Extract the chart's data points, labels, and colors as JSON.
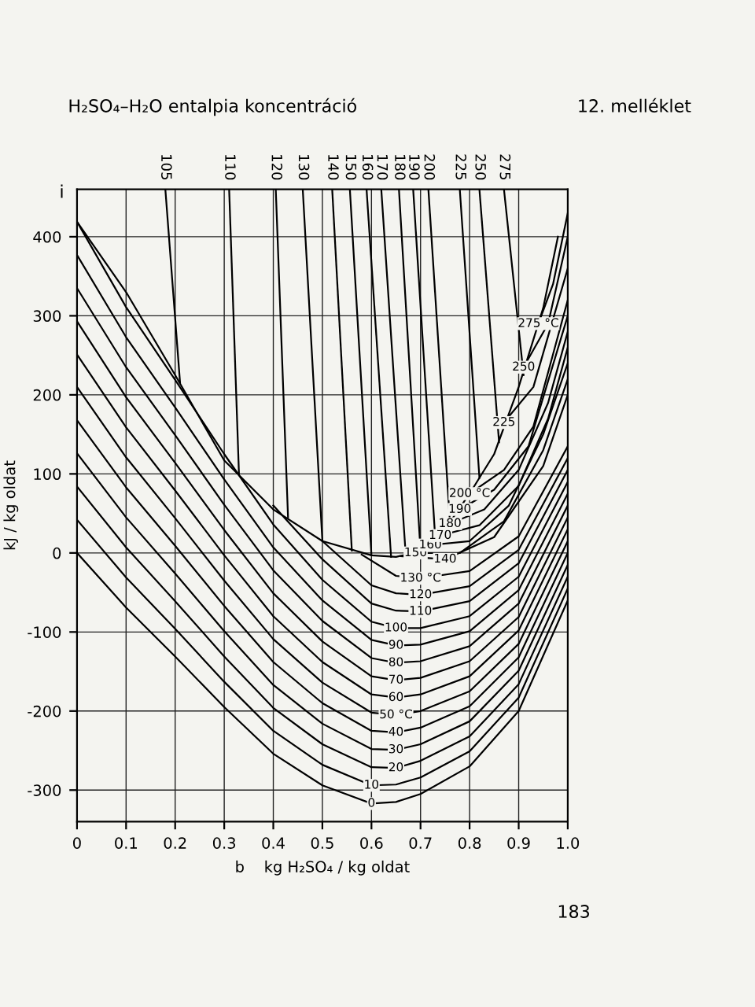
{
  "chart_data": {
    "type": "line",
    "title": "H₂SO₄–H₂O entalpia koncentráció",
    "xlabel": "b    kg H₂SO₄ / kg oldat",
    "ylabel": "kJ / kg oldat",
    "annotations": [
      "i",
      "12. melléklet",
      "183"
    ],
    "xlim": [
      0,
      1.0
    ],
    "ylim": [
      -340,
      460
    ],
    "xticks": [
      0,
      0.1,
      0.2,
      0.3,
      0.4,
      0.5,
      0.6,
      0.7,
      0.8,
      0.9,
      {
        "value": 1.0,
        "label": "1.0"
      }
    ],
    "yticks": [
      -300,
      -200,
      -100,
      0,
      100,
      200,
      300,
      400
    ],
    "grid": true,
    "legend": false,
    "marker": "none",
    "line_style": "solid",
    "series": [
      {
        "color": "#000000",
        "x": [
          0,
          0.1,
          0.2,
          0.3,
          0.4,
          0.5,
          0.6,
          0.65,
          0.7,
          0.75,
          0.8,
          0.85,
          0.9,
          0.95,
          0.98
        ],
        "values": [
          419,
          330,
          225,
          117,
          55,
          15,
          -3,
          -5,
          2,
          30,
          75,
          125,
          210,
          310,
          400
        ]
      },
      {
        "name": "0",
        "color": "#000000",
        "x": [
          0,
          0.1,
          0.2,
          0.3,
          0.4,
          0.5,
          0.6,
          0.65,
          0.7,
          0.8,
          0.9,
          1.0
        ],
        "values": [
          0,
          -69,
          -131,
          -195,
          -254,
          -294,
          -317,
          -315,
          -305,
          -270,
          -200,
          -60
        ]
      },
      {
        "name": "10",
        "color": "#000000",
        "x": [
          0,
          0.1,
          0.2,
          0.3,
          0.4,
          0.5,
          0.6,
          0.65,
          0.7,
          0.8,
          0.9,
          1.0
        ],
        "values": [
          42,
          -31,
          -96,
          -163,
          -225,
          -268,
          -294,
          -293,
          -284,
          -251,
          -183,
          -45
        ]
      },
      {
        "name": "20",
        "color": "#000000",
        "x": [
          0,
          0.1,
          0.2,
          0.3,
          0.4,
          0.5,
          0.6,
          0.65,
          0.7,
          0.8,
          0.9,
          1.0
        ],
        "values": [
          84,
          7,
          -61,
          -131,
          -196,
          -242,
          -271,
          -272,
          -263,
          -232,
          -166,
          -30
        ]
      },
      {
        "name": "30",
        "color": "#000000",
        "x": [
          0,
          0.1,
          0.2,
          0.3,
          0.4,
          0.5,
          0.6,
          0.65,
          0.7,
          0.8,
          0.9,
          1.0
        ],
        "values": [
          126,
          45,
          -26,
          -99,
          -167,
          -216,
          -248,
          -249,
          -242,
          -213,
          -149,
          -15
        ]
      },
      {
        "name": "40",
        "color": "#000000",
        "x": [
          0,
          0.1,
          0.2,
          0.3,
          0.4,
          0.5,
          0.6,
          0.65,
          0.7,
          0.8,
          0.9,
          1.0
        ],
        "values": [
          168,
          83,
          9,
          -67,
          -138,
          -190,
          -225,
          -227,
          -221,
          -194,
          -132,
          0
        ]
      },
      {
        "name": "50 °C",
        "color": "#000000",
        "x": [
          0,
          0.1,
          0.2,
          0.3,
          0.4,
          0.5,
          0.6,
          0.65,
          0.7,
          0.8,
          0.9,
          1.0
        ],
        "values": [
          210,
          121,
          44,
          -35,
          -109,
          -164,
          -202,
          -205,
          -200,
          -175,
          -115,
          15
        ]
      },
      {
        "name": "60",
        "color": "#000000",
        "x": [
          0,
          0.1,
          0.2,
          0.3,
          0.4,
          0.5,
          0.6,
          0.65,
          0.7,
          0.8,
          0.9,
          1.0
        ],
        "values": [
          251,
          159,
          79,
          -3,
          -80,
          -138,
          -179,
          -183,
          -179,
          -156,
          -98,
          30
        ]
      },
      {
        "name": "70",
        "color": "#000000",
        "x": [
          0,
          0.1,
          0.2,
          0.3,
          0.4,
          0.5,
          0.6,
          0.65,
          0.7,
          0.8,
          0.9,
          1.0
        ],
        "values": [
          293,
          197,
          114,
          29,
          -51,
          -112,
          -156,
          -161,
          -158,
          -137,
          -81,
          45
        ]
      },
      {
        "name": "80",
        "color": "#000000",
        "x": [
          0,
          0.1,
          0.2,
          0.3,
          0.4,
          0.5,
          0.6,
          0.65,
          0.7,
          0.8,
          0.9,
          1.0
        ],
        "values": [
          335,
          235,
          149,
          61,
          -22,
          -86,
          -133,
          -139,
          -137,
          -118,
          -64,
          60
        ]
      },
      {
        "name": "90",
        "color": "#000000",
        "x": [
          0,
          0.1,
          0.2,
          0.3,
          0.4,
          0.5,
          0.6,
          0.65,
          0.7,
          0.8,
          0.9,
          1.0
        ],
        "values": [
          377,
          273,
          184,
          93,
          7,
          -60,
          -110,
          -117,
          -116,
          -99,
          -47,
          75
        ]
      },
      {
        "name": "100",
        "color": "#000000",
        "x": [
          0,
          0.1,
          0.2,
          0.3,
          0.4,
          0.5,
          0.6,
          0.65,
          0.7,
          0.8,
          0.9,
          1.0
        ],
        "values": [
          419,
          311,
          219,
          125,
          36,
          -34,
          -87,
          -95,
          -95,
          -80,
          -30,
          90
        ]
      },
      {
        "name": "110",
        "color": "#000000",
        "x": [
          0.4,
          0.5,
          0.6,
          0.65,
          0.7,
          0.8,
          0.9,
          1.0
        ],
        "values": [
          60,
          -8,
          -64,
          -73,
          -74,
          -61,
          -13,
          105
        ]
      },
      {
        "name": "120",
        "color": "#000000",
        "x": [
          0.5,
          0.6,
          0.65,
          0.7,
          0.8,
          0.9,
          1.0
        ],
        "values": [
          15,
          -41,
          -51,
          -53,
          -42,
          4,
          120
        ]
      },
      {
        "name": "130 °C",
        "color": "#000000",
        "x": [
          0.58,
          0.65,
          0.7,
          0.8,
          0.9,
          1.0
        ],
        "values": [
          -2,
          -29,
          -32,
          -23,
          21,
          135
        ]
      },
      {
        "name": "140",
        "color": "#000000",
        "x": [
          0.66,
          0.75,
          0.85,
          0.95,
          1.0
        ],
        "values": [
          -4,
          -8,
          20,
          110,
          200
        ]
      },
      {
        "name": "150",
        "color": "#000000",
        "x": [
          0.69,
          0.78,
          0.87,
          0.95,
          1.0
        ],
        "values": [
          0,
          0,
          40,
          130,
          220
        ]
      },
      {
        "name": "160",
        "color": "#000000",
        "x": [
          0.72,
          0.8,
          0.88,
          0.95,
          1.0
        ],
        "values": [
          10,
          15,
          60,
          150,
          240
        ]
      },
      {
        "name": "170",
        "color": "#000000",
        "x": [
          0.74,
          0.82,
          0.9,
          0.96,
          1.0
        ],
        "values": [
          22,
          35,
          85,
          170,
          260
        ]
      },
      {
        "name": "180",
        "color": "#000000",
        "x": [
          0.76,
          0.83,
          0.9,
          0.96,
          1.0
        ],
        "values": [
          37,
          55,
          105,
          190,
          280
        ]
      },
      {
        "name": "190",
        "color": "#000000",
        "x": [
          0.78,
          0.85,
          0.92,
          1.0
        ],
        "values": [
          55,
          80,
          135,
          300
        ]
      },
      {
        "name": "200 °C",
        "color": "#000000",
        "x": [
          0.8,
          0.87,
          0.93,
          1.0
        ],
        "values": [
          75,
          105,
          160,
          320
        ]
      },
      {
        "name": "225",
        "color": "#000000",
        "x": [
          0.87,
          0.93,
          1.0
        ],
        "values": [
          165,
          210,
          360
        ]
      },
      {
        "name": "250",
        "color": "#000000",
        "x": [
          0.91,
          0.96,
          1.0
        ],
        "values": [
          235,
          290,
          400
        ]
      },
      {
        "name": "275 °C",
        "color": "#000000",
        "x": [
          0.94,
          0.97,
          1.0
        ],
        "values": [
          290,
          340,
          430
        ]
      },
      {
        "name": "105",
        "color": "#000000",
        "x": [
          0.18,
          0.21
        ],
        "values": [
          460,
          215
        ]
      },
      {
        "name": "110",
        "color": "#000000",
        "x": [
          0.31,
          0.33
        ],
        "values": [
          460,
          100
        ]
      },
      {
        "name": "120",
        "color": "#000000",
        "x": [
          0.405,
          0.43
        ],
        "values": [
          460,
          45
        ]
      },
      {
        "name": "130",
        "color": "#000000",
        "x": [
          0.46,
          0.5
        ],
        "values": [
          460,
          15
        ]
      },
      {
        "name": "140",
        "color": "#000000",
        "x": [
          0.52,
          0.56
        ],
        "values": [
          460,
          3
        ]
      },
      {
        "name": "150",
        "color": "#000000",
        "x": [
          0.556,
          0.6
        ],
        "values": [
          460,
          -3
        ]
      },
      {
        "name": "160",
        "color": "#000000",
        "x": [
          0.59,
          0.64
        ],
        "values": [
          460,
          -5
        ]
      },
      {
        "name": "170",
        "color": "#000000",
        "x": [
          0.62,
          0.67
        ],
        "values": [
          460,
          -4
        ]
      },
      {
        "name": "180",
        "color": "#000000",
        "x": [
          0.656,
          0.7
        ],
        "values": [
          460,
          2
        ]
      },
      {
        "name": "190",
        "color": "#000000",
        "x": [
          0.685,
          0.73
        ],
        "values": [
          460,
          18
        ]
      },
      {
        "name": "200",
        "color": "#000000",
        "x": [
          0.716,
          0.76
        ],
        "values": [
          460,
          38
        ]
      },
      {
        "name": "225",
        "color": "#000000",
        "x": [
          0.78,
          0.82
        ],
        "values": [
          460,
          95
        ]
      },
      {
        "name": "250",
        "color": "#000000",
        "x": [
          0.82,
          0.86
        ],
        "values": [
          460,
          140
        ]
      },
      {
        "name": "275",
        "color": "#000000",
        "x": [
          0.87,
          0.91
        ],
        "values": [
          460,
          225
        ]
      }
    ]
  }
}
